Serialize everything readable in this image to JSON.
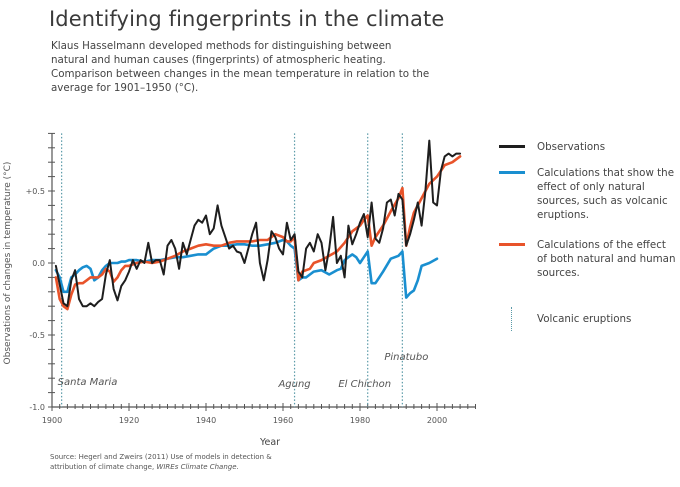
{
  "header": {
    "title": "Identifying fingerprints in the climate",
    "subtitle": "Klaus Hasselmann developed methods for distinguishing between natural and human causes (fingerprints) of atmospheric heating. Comparison between changes in the mean temperature in relation to the average for 1901–1950 (°C)."
  },
  "legend": {
    "observations": "Observations",
    "natural": "Calculations that show the effect of only natural sources, such as volcanic eruptions.",
    "combined": "Calculations of the effect of both natural and human sources.",
    "volcanic": "Volcanic eruptions"
  },
  "colors": {
    "observations": "#1e1e1e",
    "natural": "#1a8fd0",
    "combined": "#e8532a",
    "volcanic": "#5a9aa8",
    "axis": "#555555"
  },
  "source": {
    "prefix": "Source: Hegerl and Zweirs (2011) Use of models in detection & attribution of climate change, ",
    "journal": "WIREs Climate Change",
    "suffix": "."
  },
  "chart_data": {
    "type": "line",
    "title": "Identifying fingerprints in the climate",
    "xlabel": "Year",
    "ylabel": "Observations of changes in temperature (°C)",
    "xlim": [
      1900,
      2010
    ],
    "ylim": [
      -1.0,
      0.9
    ],
    "xticks": [
      1900,
      1920,
      1940,
      1960,
      1980,
      2000
    ],
    "yticks": [
      -1.0,
      -0.5,
      0.0,
      0.5
    ],
    "ytick_labels": [
      "-1.0",
      "-0.5",
      "0.0",
      "+0.5"
    ],
    "grid": false,
    "legend_position": "right",
    "volcanoes": [
      {
        "name": "Santa Maria",
        "year": 1902.5
      },
      {
        "name": "Agung",
        "year": 1963
      },
      {
        "name": "El Chichon",
        "year": 1982
      },
      {
        "name": "Pinatubo",
        "year": 1991
      }
    ],
    "series": [
      {
        "name": "Observations",
        "x": [
          1901,
          1902,
          1903,
          1904,
          1905,
          1906,
          1907,
          1908,
          1909,
          1910,
          1911,
          1912,
          1913,
          1914,
          1915,
          1916,
          1917,
          1918,
          1919,
          1920,
          1921,
          1922,
          1923,
          1924,
          1925,
          1926,
          1927,
          1928,
          1929,
          1930,
          1931,
          1932,
          1933,
          1934,
          1935,
          1936,
          1937,
          1938,
          1939,
          1940,
          1941,
          1942,
          1943,
          1944,
          1945,
          1946,
          1947,
          1948,
          1949,
          1950,
          1951,
          1952,
          1953,
          1954,
          1955,
          1956,
          1957,
          1958,
          1959,
          1960,
          1961,
          1962,
          1963,
          1964,
          1965,
          1966,
          1967,
          1968,
          1969,
          1970,
          1971,
          1972,
          1973,
          1974,
          1975,
          1976,
          1977,
          1978,
          1979,
          1980,
          1981,
          1982,
          1983,
          1984,
          1985,
          1986,
          1987,
          1988,
          1989,
          1990,
          1991,
          1992,
          1993,
          1994,
          1995,
          1996,
          1997,
          1998,
          1999,
          2000,
          2001,
          2002,
          2003,
          2004,
          2005,
          2006
        ],
        "values": [
          -0.02,
          -0.15,
          -0.28,
          -0.3,
          -0.12,
          -0.05,
          -0.25,
          -0.3,
          -0.3,
          -0.28,
          -0.3,
          -0.27,
          -0.25,
          -0.08,
          0.02,
          -0.18,
          -0.26,
          -0.16,
          -0.12,
          -0.06,
          0.02,
          -0.04,
          0.02,
          0.0,
          0.14,
          0.0,
          0.02,
          0.02,
          -0.08,
          0.12,
          0.16,
          0.1,
          -0.04,
          0.14,
          0.06,
          0.16,
          0.26,
          0.3,
          0.28,
          0.33,
          0.2,
          0.24,
          0.4,
          0.26,
          0.18,
          0.1,
          0.12,
          0.08,
          0.07,
          0.0,
          0.1,
          0.2,
          0.28,
          0.0,
          -0.12,
          0.02,
          0.22,
          0.18,
          0.1,
          0.06,
          0.28,
          0.16,
          0.2,
          -0.06,
          -0.1,
          0.1,
          0.14,
          0.08,
          0.2,
          0.14,
          -0.05,
          0.1,
          0.32,
          0.0,
          0.05,
          -0.1,
          0.26,
          0.13,
          0.2,
          0.28,
          0.34,
          0.18,
          0.42,
          0.17,
          0.14,
          0.24,
          0.42,
          0.44,
          0.33,
          0.48,
          0.44,
          0.12,
          0.2,
          0.3,
          0.42,
          0.26,
          0.5,
          0.85,
          0.42,
          0.4,
          0.64,
          0.74,
          0.76,
          0.74,
          0.76,
          0.76
        ]
      },
      {
        "name": "Natural only",
        "x": [
          1901,
          1902,
          1903,
          1904,
          1905,
          1906,
          1907,
          1908,
          1909,
          1910,
          1911,
          1912,
          1913,
          1914,
          1915,
          1916,
          1917,
          1918,
          1919,
          1920,
          1922,
          1924,
          1926,
          1928,
          1930,
          1932,
          1934,
          1936,
          1938,
          1940,
          1942,
          1944,
          1946,
          1948,
          1950,
          1952,
          1954,
          1956,
          1958,
          1960,
          1961,
          1962,
          1963,
          1964,
          1965,
          1966,
          1967,
          1968,
          1970,
          1972,
          1974,
          1975,
          1976,
          1977,
          1978,
          1979,
          1980,
          1981,
          1982,
          1983,
          1984,
          1985,
          1986,
          1988,
          1990,
          1991,
          1992,
          1993,
          1994,
          1995,
          1996,
          1998,
          2000
        ],
        "values": [
          -0.05,
          -0.1,
          -0.2,
          -0.2,
          -0.1,
          -0.08,
          -0.05,
          -0.03,
          -0.02,
          -0.04,
          -0.12,
          -0.1,
          -0.05,
          -0.02,
          0.0,
          0.0,
          0.0,
          0.01,
          0.01,
          0.02,
          0.02,
          0.01,
          0.02,
          0.02,
          0.03,
          0.04,
          0.04,
          0.05,
          0.06,
          0.06,
          0.1,
          0.12,
          0.12,
          0.13,
          0.13,
          0.12,
          0.12,
          0.13,
          0.14,
          0.16,
          0.15,
          0.12,
          0.1,
          -0.12,
          -0.1,
          -0.1,
          -0.08,
          -0.06,
          -0.05,
          -0.08,
          -0.05,
          -0.04,
          0.02,
          0.04,
          0.06,
          0.04,
          0.0,
          0.04,
          0.08,
          -0.14,
          -0.14,
          -0.1,
          -0.06,
          0.03,
          0.05,
          0.08,
          -0.24,
          -0.21,
          -0.19,
          -0.12,
          -0.02,
          0.0,
          0.03
        ]
      },
      {
        "name": "Natural and human",
        "x": [
          1901,
          1902,
          1903,
          1904,
          1905,
          1906,
          1907,
          1908,
          1909,
          1910,
          1911,
          1912,
          1913,
          1914,
          1915,
          1916,
          1917,
          1918,
          1919,
          1920,
          1922,
          1924,
          1926,
          1928,
          1930,
          1932,
          1934,
          1936,
          1938,
          1940,
          1942,
          1944,
          1946,
          1948,
          1950,
          1952,
          1954,
          1956,
          1958,
          1960,
          1961,
          1962,
          1963,
          1964,
          1965,
          1966,
          1967,
          1968,
          1970,
          1972,
          1974,
          1976,
          1978,
          1980,
          1981,
          1982,
          1983,
          1984,
          1986,
          1988,
          1990,
          1991,
          1992,
          1993,
          1994,
          1996,
          1998,
          2000,
          2002,
          2004,
          2006
        ],
        "values": [
          -0.1,
          -0.25,
          -0.3,
          -0.32,
          -0.22,
          -0.15,
          -0.14,
          -0.14,
          -0.12,
          -0.1,
          -0.1,
          -0.1,
          -0.08,
          -0.04,
          -0.06,
          -0.13,
          -0.1,
          -0.05,
          -0.02,
          -0.02,
          0.0,
          0.01,
          0.0,
          0.01,
          0.03,
          0.05,
          0.08,
          0.1,
          0.12,
          0.13,
          0.12,
          0.12,
          0.14,
          0.15,
          0.15,
          0.15,
          0.16,
          0.16,
          0.2,
          0.18,
          0.15,
          0.15,
          0.18,
          -0.12,
          -0.06,
          -0.05,
          -0.04,
          0.0,
          0.02,
          0.05,
          0.08,
          0.14,
          0.22,
          0.26,
          0.3,
          0.33,
          0.12,
          0.18,
          0.26,
          0.36,
          0.45,
          0.52,
          0.12,
          0.25,
          0.35,
          0.45,
          0.55,
          0.6,
          0.68,
          0.7,
          0.74
        ]
      }
    ]
  }
}
